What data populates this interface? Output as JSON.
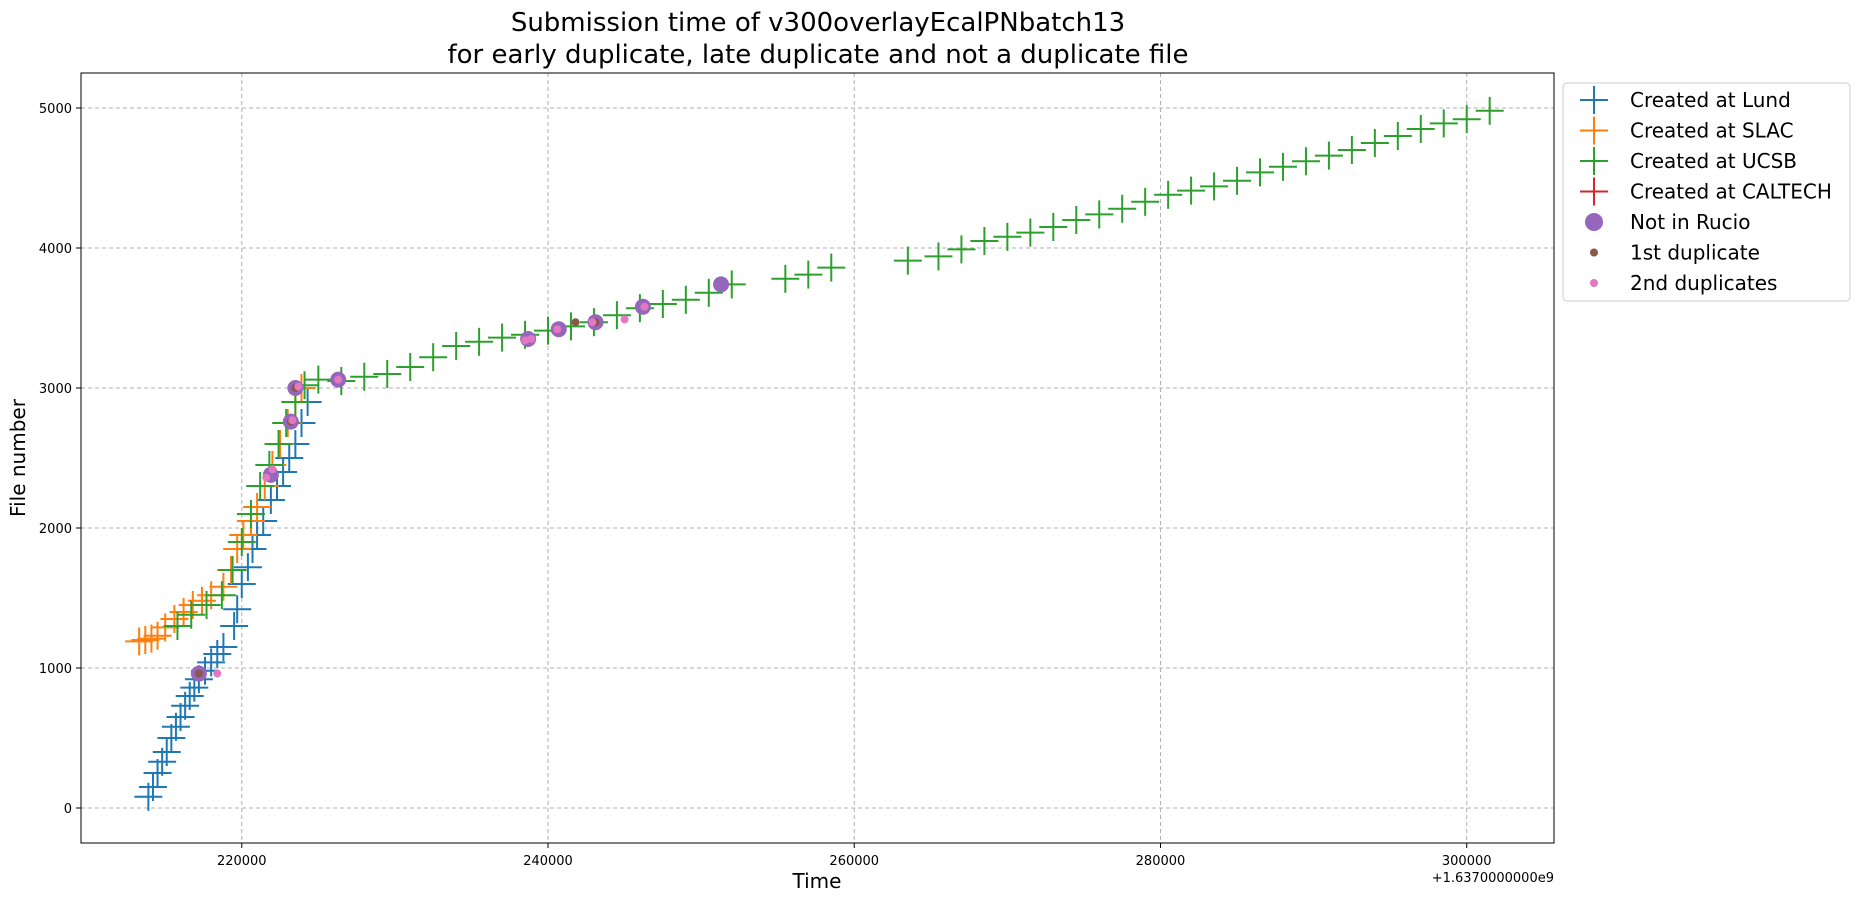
{
  "chart_data": {
    "type": "scatter",
    "title": [
      "Submission time of v300overlayEcalPNbatch13",
      "for early duplicate, late duplicate and not a duplicate file"
    ],
    "xlabel": "Time",
    "ylabel": "File number",
    "x_offset_label": "+1.6370000000e9",
    "xlim": [
      209500,
      305700
    ],
    "ylim": [
      -250,
      5250
    ],
    "x_ticks": [
      220000,
      240000,
      260000,
      280000,
      300000
    ],
    "x_tick_labels": [
      "220000",
      "240000",
      "260000",
      "280000",
      "300000"
    ],
    "y_ticks": [
      0,
      1000,
      2000,
      3000,
      4000,
      5000
    ],
    "y_tick_labels": [
      "0",
      "1000",
      "2000",
      "3000",
      "4000",
      "5000"
    ],
    "grid": true,
    "legend_position": "outside upper right",
    "series": [
      {
        "name": "Created at Lund",
        "marker": "plus",
        "color": "#1f77b4",
        "points": [
          [
            213900,
            80
          ],
          [
            214200,
            150
          ],
          [
            214500,
            250
          ],
          [
            214800,
            330
          ],
          [
            215100,
            400
          ],
          [
            215400,
            500
          ],
          [
            215700,
            580
          ],
          [
            216000,
            650
          ],
          [
            216300,
            730
          ],
          [
            216600,
            800
          ],
          [
            216900,
            860
          ],
          [
            217200,
            920
          ],
          [
            217600,
            980
          ],
          [
            218000,
            1040
          ],
          [
            218400,
            1100
          ],
          [
            218800,
            1150
          ],
          [
            219500,
            1300
          ],
          [
            219700,
            1420
          ],
          [
            220000,
            1600
          ],
          [
            220400,
            1720
          ],
          [
            220700,
            1850
          ],
          [
            221000,
            1950
          ],
          [
            221400,
            2050
          ],
          [
            221900,
            2200
          ],
          [
            222300,
            2300
          ],
          [
            222700,
            2400
          ],
          [
            223100,
            2500
          ],
          [
            223500,
            2600
          ],
          [
            223900,
            2750
          ],
          [
            224300,
            2900
          ]
        ]
      },
      {
        "name": "Created at SLAC",
        "marker": "plus",
        "color": "#ff7f0e",
        "points": [
          [
            213300,
            1190
          ],
          [
            213700,
            1200
          ],
          [
            214100,
            1210
          ],
          [
            214500,
            1230
          ],
          [
            215000,
            1290
          ],
          [
            215600,
            1350
          ],
          [
            216200,
            1400
          ],
          [
            216800,
            1450
          ],
          [
            217400,
            1480
          ],
          [
            218000,
            1520
          ],
          [
            218800,
            1580
          ],
          [
            219300,
            1700
          ],
          [
            219700,
            1850
          ],
          [
            220100,
            1950
          ],
          [
            220600,
            2050
          ],
          [
            221000,
            2150
          ],
          [
            221500,
            2300
          ],
          [
            222000,
            2450
          ],
          [
            222500,
            2600
          ],
          [
            223000,
            2750
          ],
          [
            223500,
            2900
          ],
          [
            223900,
            3000
          ]
        ]
      },
      {
        "name": "Created at UCSB",
        "marker": "plus",
        "color": "#2ca02c",
        "points": [
          [
            215800,
            1300
          ],
          [
            216700,
            1380
          ],
          [
            217700,
            1450
          ],
          [
            218700,
            1520
          ],
          [
            219400,
            1700
          ],
          [
            220000,
            1900
          ],
          [
            220600,
            2100
          ],
          [
            221200,
            2300
          ],
          [
            221800,
            2450
          ],
          [
            222400,
            2600
          ],
          [
            222900,
            2750
          ],
          [
            223500,
            2900
          ],
          [
            224100,
            3020
          ],
          [
            225000,
            3060
          ],
          [
            226500,
            3050
          ],
          [
            228000,
            3080
          ],
          [
            229500,
            3100
          ],
          [
            231000,
            3150
          ],
          [
            232500,
            3220
          ],
          [
            234000,
            3300
          ],
          [
            235500,
            3330
          ],
          [
            237000,
            3360
          ],
          [
            238500,
            3380
          ],
          [
            240000,
            3410
          ],
          [
            241500,
            3440
          ],
          [
            243000,
            3470
          ],
          [
            244500,
            3520
          ],
          [
            246000,
            3570
          ],
          [
            247500,
            3600
          ],
          [
            249000,
            3630
          ],
          [
            250500,
            3680
          ],
          [
            252000,
            3740
          ],
          [
            255500,
            3780
          ],
          [
            257000,
            3810
          ],
          [
            258500,
            3860
          ],
          [
            263500,
            3910
          ],
          [
            265500,
            3940
          ],
          [
            267000,
            3990
          ],
          [
            268500,
            4050
          ],
          [
            270000,
            4080
          ],
          [
            271500,
            4110
          ],
          [
            273000,
            4150
          ],
          [
            274500,
            4200
          ],
          [
            276000,
            4240
          ],
          [
            277500,
            4280
          ],
          [
            279000,
            4330
          ],
          [
            280500,
            4380
          ],
          [
            282000,
            4410
          ],
          [
            283500,
            4440
          ],
          [
            285000,
            4480
          ],
          [
            286500,
            4540
          ],
          [
            288000,
            4580
          ],
          [
            289500,
            4620
          ],
          [
            291000,
            4660
          ],
          [
            292500,
            4700
          ],
          [
            294000,
            4750
          ],
          [
            295500,
            4800
          ],
          [
            297000,
            4850
          ],
          [
            298500,
            4890
          ],
          [
            300000,
            4920
          ],
          [
            301500,
            4980
          ]
        ]
      },
      {
        "name": "Created at CALTECH",
        "marker": "plus",
        "color": "#d62728",
        "points": []
      },
      {
        "name": "Not in Rucio",
        "marker": "circle-large",
        "color": "#9467bd",
        "points": [
          [
            217200,
            960
          ],
          [
            221900,
            2380
          ],
          [
            223200,
            2760
          ],
          [
            223500,
            3000
          ],
          [
            226300,
            3060
          ],
          [
            238700,
            3350
          ],
          [
            240700,
            3420
          ],
          [
            243100,
            3470
          ],
          [
            246200,
            3580
          ],
          [
            251300,
            3740
          ]
        ]
      },
      {
        "name": "1st duplicate",
        "marker": "circle-small",
        "color": "#8c564b",
        "points": [
          [
            217200,
            960
          ],
          [
            223200,
            2760
          ],
          [
            223500,
            3000
          ],
          [
            241800,
            3470
          ],
          [
            243100,
            3470
          ]
        ]
      },
      {
        "name": "2nd duplicates",
        "marker": "circle-small",
        "color": "#e377c2",
        "points": [
          [
            218400,
            960
          ],
          [
            221600,
            2360
          ],
          [
            222000,
            2420
          ],
          [
            223300,
            2770
          ],
          [
            223700,
            3010
          ],
          [
            226300,
            3060
          ],
          [
            238500,
            3340
          ],
          [
            238900,
            3350
          ],
          [
            240600,
            3420
          ],
          [
            242900,
            3470
          ],
          [
            245000,
            3490
          ],
          [
            246300,
            3580
          ]
        ]
      }
    ]
  }
}
